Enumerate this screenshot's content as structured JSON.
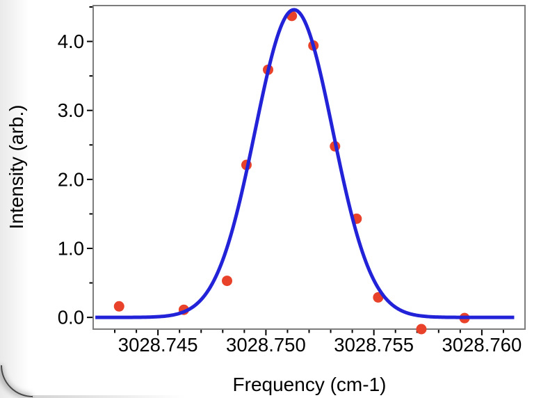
{
  "chart_data": {
    "type": "scatter",
    "title": "",
    "xlabel": "Frequency (cm-1)",
    "ylabel": "Intensity (arb.)",
    "xlim": [
      3028.742,
      3028.762
    ],
    "ylim": [
      -0.17,
      4.52
    ],
    "grid": false,
    "legend": null,
    "x_major_ticks": [
      3028.745,
      3028.75,
      3028.755,
      3028.76
    ],
    "x_tick_labels": [
      "3028.745",
      "3028.750",
      "3028.755",
      "3028.760"
    ],
    "x_minor_step": 0.001,
    "y_major_ticks": [
      0,
      1,
      2,
      3,
      4
    ],
    "y_tick_labels": [
      "0.0",
      "1.0",
      "2.0",
      "3.0",
      "4.0"
    ],
    "y_minor_step": 0.5,
    "points": [
      {
        "x": 3028.7432,
        "y": 0.16
      },
      {
        "x": 3028.7462,
        "y": 0.11
      },
      {
        "x": 3028.7482,
        "y": 0.53
      },
      {
        "x": 3028.7491,
        "y": 2.21
      },
      {
        "x": 3028.7501,
        "y": 3.59
      },
      {
        "x": 3028.7512,
        "y": 4.37
      },
      {
        "x": 3028.7522,
        "y": 3.94
      },
      {
        "x": 3028.7532,
        "y": 2.48
      },
      {
        "x": 3028.7542,
        "y": 1.43
      },
      {
        "x": 3028.7552,
        "y": 0.29
      },
      {
        "x": 3028.7572,
        "y": -0.17
      },
      {
        "x": 3028.7592,
        "y": -0.01
      }
    ],
    "fit_curve": {
      "shape": "gaussian",
      "amplitude": 4.46,
      "center": 3028.7513,
      "sigma": 0.0018,
      "baseline": 0.0,
      "x_start": 3028.7421,
      "x_end": 3028.7615
    },
    "colors": {
      "curve": "#2222d8",
      "points": "#e8422a",
      "frame": "#7c7c7c",
      "ticks": "#000000",
      "text": "#000000"
    }
  }
}
